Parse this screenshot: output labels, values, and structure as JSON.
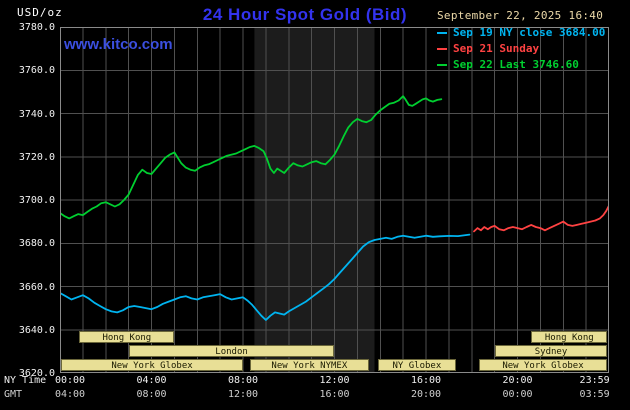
{
  "header": {
    "unit_label": "USD/oz",
    "title": "24 Hour Spot Gold (Bid)",
    "datetime": "September 22, 2025 16:40",
    "watermark": "www.kitco.com"
  },
  "legend": [
    {
      "label": "Sep 19 NY close 3684.00",
      "color": "#00b4f0"
    },
    {
      "label": "Sep 21 Sunday",
      "color": "#ff4242"
    },
    {
      "label": "Sep 22 Last 3746.60",
      "color": "#00cf30"
    }
  ],
  "axes": {
    "ny_time_label": "NY Time",
    "gmt_label": "GMT",
    "x_ticks": [
      {
        "h": 0,
        "ny": "00:00",
        "gmt": "04:00",
        "dx": 10
      },
      {
        "h": 4,
        "ny": "04:00",
        "gmt": "08:00",
        "dx": 0
      },
      {
        "h": 8,
        "ny": "08:00",
        "gmt": "12:00",
        "dx": 0
      },
      {
        "h": 12,
        "ny": "12:00",
        "gmt": "16:00",
        "dx": 0
      },
      {
        "h": 16,
        "ny": "16:00",
        "gmt": "20:00",
        "dx": 0
      },
      {
        "h": 20,
        "ny": "20:00",
        "gmt": "00:00",
        "dx": 0
      },
      {
        "h": 23.983,
        "ny": "23:59",
        "gmt": "03:59",
        "dx": -14
      }
    ],
    "y_ticks": [
      "3780.0",
      "3760.0",
      "3740.0",
      "3720.0",
      "3700.0",
      "3680.0",
      "3660.0",
      "3640.0",
      "3620.0"
    ]
  },
  "colors": {
    "background": "#000000",
    "grid": "#505050",
    "border": "#8a8a8a",
    "nymex_band": "#1c1c1c",
    "title": "#3333ee",
    "watermark": "#3b4fe0",
    "datetime": "#ecd9a8",
    "axis_text": "#f0f0f0",
    "session_fill": "#e8df96",
    "session_text": "#1a1a00"
  },
  "chart_data": {
    "type": "line",
    "title": "24 Hour Spot Gold (Bid)",
    "xlabel": "Time (NY Time / GMT)",
    "ylabel": "USD/oz",
    "xlim": [
      0,
      24
    ],
    "ylim": [
      3620,
      3780
    ],
    "y_grid_step": 20,
    "x_grid_step_hours": 1,
    "grid": true,
    "legend_position": "top-right",
    "nymex_band_hours": [
      8.5,
      13.75
    ],
    "series": [
      {
        "name": "Sep 19 NY close",
        "close": 3684.0,
        "color": "#00b4f0",
        "points": [
          [
            0,
            3657
          ],
          [
            0.25,
            3655.5
          ],
          [
            0.5,
            3654
          ],
          [
            0.75,
            3655
          ],
          [
            1,
            3656
          ],
          [
            1.25,
            3654.5
          ],
          [
            1.5,
            3652.5
          ],
          [
            1.75,
            3651
          ],
          [
            2,
            3649.5
          ],
          [
            2.25,
            3648.5
          ],
          [
            2.5,
            3648
          ],
          [
            2.75,
            3649
          ],
          [
            3,
            3650.5
          ],
          [
            3.25,
            3651
          ],
          [
            3.5,
            3650.5
          ],
          [
            3.75,
            3650
          ],
          [
            4,
            3649.5
          ],
          [
            4.25,
            3650.5
          ],
          [
            4.5,
            3652
          ],
          [
            4.75,
            3653
          ],
          [
            5,
            3654
          ],
          [
            5.25,
            3655
          ],
          [
            5.5,
            3655.5
          ],
          [
            5.75,
            3654.5
          ],
          [
            6,
            3654
          ],
          [
            6.25,
            3655
          ],
          [
            6.5,
            3655.5
          ],
          [
            6.75,
            3656
          ],
          [
            7,
            3656.5
          ],
          [
            7.25,
            3655
          ],
          [
            7.5,
            3654
          ],
          [
            7.75,
            3654.5
          ],
          [
            8,
            3655
          ],
          [
            8.2,
            3653.5
          ],
          [
            8.4,
            3651.5
          ],
          [
            8.6,
            3649
          ],
          [
            8.8,
            3646.5
          ],
          [
            9,
            3644.5
          ],
          [
            9.2,
            3646.5
          ],
          [
            9.4,
            3648
          ],
          [
            9.6,
            3647.5
          ],
          [
            9.8,
            3647
          ],
          [
            10,
            3648.5
          ],
          [
            10.25,
            3650
          ],
          [
            10.5,
            3651.5
          ],
          [
            10.75,
            3653
          ],
          [
            11,
            3655
          ],
          [
            11.25,
            3657
          ],
          [
            11.5,
            3659
          ],
          [
            11.75,
            3661
          ],
          [
            12,
            3663.5
          ],
          [
            12.25,
            3666.5
          ],
          [
            12.5,
            3669.5
          ],
          [
            12.75,
            3672.5
          ],
          [
            13,
            3675.5
          ],
          [
            13.25,
            3678.5
          ],
          [
            13.5,
            3680.5
          ],
          [
            13.75,
            3681.5
          ],
          [
            14,
            3682
          ],
          [
            14.25,
            3682.5
          ],
          [
            14.5,
            3682
          ],
          [
            14.75,
            3683
          ],
          [
            15,
            3683.5
          ],
          [
            15.25,
            3683
          ],
          [
            15.5,
            3682.5
          ],
          [
            15.75,
            3683
          ],
          [
            16,
            3683.5
          ],
          [
            16.3,
            3683
          ],
          [
            16.6,
            3683.2
          ],
          [
            17,
            3683.4
          ],
          [
            17.4,
            3683.3
          ],
          [
            17.9,
            3684
          ]
        ]
      },
      {
        "name": "Sep 21 Sunday",
        "color": "#ff4242",
        "points": [
          [
            18.1,
            3685.5
          ],
          [
            18.25,
            3687
          ],
          [
            18.4,
            3686
          ],
          [
            18.55,
            3687.5
          ],
          [
            18.7,
            3686.5
          ],
          [
            18.85,
            3687.5
          ],
          [
            19,
            3688
          ],
          [
            19.2,
            3686.5
          ],
          [
            19.4,
            3686
          ],
          [
            19.6,
            3687
          ],
          [
            19.8,
            3687.5
          ],
          [
            20,
            3687
          ],
          [
            20.2,
            3686.5
          ],
          [
            20.4,
            3687.5
          ],
          [
            20.6,
            3688.5
          ],
          [
            20.8,
            3687.5
          ],
          [
            21,
            3687
          ],
          [
            21.2,
            3686
          ],
          [
            21.4,
            3687
          ],
          [
            21.6,
            3688
          ],
          [
            21.8,
            3689
          ],
          [
            22,
            3690
          ],
          [
            22.2,
            3688.5
          ],
          [
            22.4,
            3688
          ],
          [
            22.6,
            3688.5
          ],
          [
            22.8,
            3689
          ],
          [
            23,
            3689.5
          ],
          [
            23.2,
            3690
          ],
          [
            23.4,
            3690.5
          ],
          [
            23.6,
            3691.5
          ],
          [
            23.75,
            3693
          ],
          [
            23.88,
            3695
          ],
          [
            23.98,
            3697
          ]
        ]
      },
      {
        "name": "Sep 22",
        "last": 3746.6,
        "color": "#00cf30",
        "points": [
          [
            0,
            3694
          ],
          [
            0.2,
            3692.5
          ],
          [
            0.4,
            3691.5
          ],
          [
            0.6,
            3692.5
          ],
          [
            0.8,
            3693.5
          ],
          [
            1,
            3693
          ],
          [
            1.2,
            3694.5
          ],
          [
            1.4,
            3696
          ],
          [
            1.6,
            3697
          ],
          [
            1.8,
            3698.5
          ],
          [
            2,
            3699
          ],
          [
            2.2,
            3698
          ],
          [
            2.4,
            3697
          ],
          [
            2.6,
            3698
          ],
          [
            2.8,
            3700
          ],
          [
            3,
            3702.5
          ],
          [
            3.2,
            3707
          ],
          [
            3.4,
            3711.5
          ],
          [
            3.6,
            3714
          ],
          [
            3.8,
            3712.5
          ],
          [
            4,
            3712
          ],
          [
            4.2,
            3714.5
          ],
          [
            4.4,
            3717
          ],
          [
            4.6,
            3719.5
          ],
          [
            4.8,
            3721
          ],
          [
            5,
            3722
          ],
          [
            5.15,
            3719.5
          ],
          [
            5.3,
            3717
          ],
          [
            5.5,
            3715
          ],
          [
            5.7,
            3714
          ],
          [
            5.9,
            3713.5
          ],
          [
            6.1,
            3715
          ],
          [
            6.3,
            3716
          ],
          [
            6.5,
            3716.5
          ],
          [
            6.7,
            3717.5
          ],
          [
            6.9,
            3718.5
          ],
          [
            7.1,
            3719.5
          ],
          [
            7.3,
            3720.5
          ],
          [
            7.5,
            3721
          ],
          [
            7.7,
            3721.5
          ],
          [
            7.9,
            3722.5
          ],
          [
            8.1,
            3723.5
          ],
          [
            8.3,
            3724.5
          ],
          [
            8.5,
            3725
          ],
          [
            8.7,
            3724
          ],
          [
            8.9,
            3722.5
          ],
          [
            9.05,
            3719
          ],
          [
            9.2,
            3714.5
          ],
          [
            9.35,
            3712.5
          ],
          [
            9.5,
            3714.5
          ],
          [
            9.65,
            3713.5
          ],
          [
            9.8,
            3712.5
          ],
          [
            10,
            3715
          ],
          [
            10.2,
            3717
          ],
          [
            10.4,
            3716
          ],
          [
            10.6,
            3715.5
          ],
          [
            10.8,
            3716.5
          ],
          [
            11,
            3717.5
          ],
          [
            11.2,
            3718
          ],
          [
            11.4,
            3717
          ],
          [
            11.6,
            3716.5
          ],
          [
            11.8,
            3718.5
          ],
          [
            12,
            3721
          ],
          [
            12.2,
            3725
          ],
          [
            12.4,
            3729.5
          ],
          [
            12.6,
            3733.5
          ],
          [
            12.8,
            3736
          ],
          [
            13,
            3737.5
          ],
          [
            13.2,
            3736.5
          ],
          [
            13.4,
            3736
          ],
          [
            13.6,
            3737
          ],
          [
            13.8,
            3739.5
          ],
          [
            14,
            3741.5
          ],
          [
            14.2,
            3743
          ],
          [
            14.4,
            3744.5
          ],
          [
            14.6,
            3745
          ],
          [
            14.8,
            3746
          ],
          [
            15,
            3748
          ],
          [
            15.1,
            3746.5
          ],
          [
            15.25,
            3744
          ],
          [
            15.4,
            3743.5
          ],
          [
            15.55,
            3744.5
          ],
          [
            15.7,
            3745.5
          ],
          [
            15.85,
            3746.5
          ],
          [
            16,
            3747
          ],
          [
            16.15,
            3746
          ],
          [
            16.3,
            3745.5
          ],
          [
            16.5,
            3746.3
          ],
          [
            16.67,
            3746.6
          ]
        ]
      }
    ],
    "sessions": [
      {
        "label": "Hong Kong",
        "row": 0,
        "start": 0.85,
        "end": 5.0
      },
      {
        "label": "Hong Kong",
        "row": 0,
        "start": 20.6,
        "end": 23.93
      },
      {
        "label": "London",
        "row": 1,
        "start": 3.0,
        "end": 12.0
      },
      {
        "label": "Sydney",
        "row": 1,
        "start": 19.0,
        "end": 23.93
      },
      {
        "label": "New York Globex",
        "row": 2,
        "start": 0.05,
        "end": 8.0
      },
      {
        "label": "New York NYMEX",
        "row": 2,
        "start": 8.3,
        "end": 13.5
      },
      {
        "label": "NY Globex",
        "row": 2,
        "start": 13.9,
        "end": 17.3
      },
      {
        "label": "New York Globex",
        "row": 2,
        "start": 18.3,
        "end": 23.93
      }
    ]
  }
}
